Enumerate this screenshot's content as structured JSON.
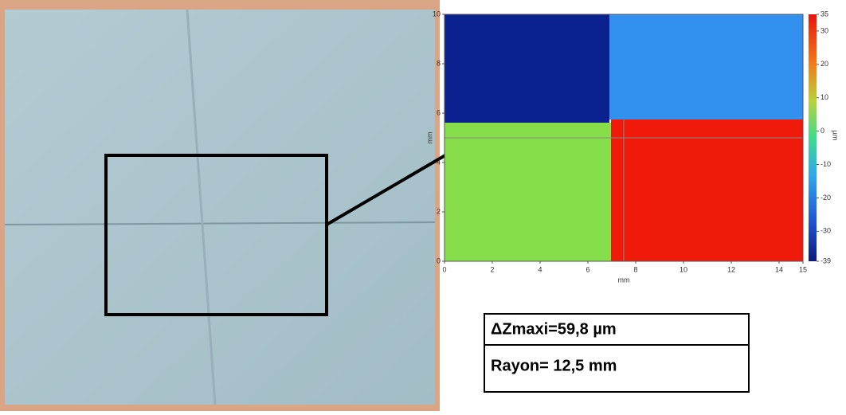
{
  "map": {
    "x_label": "mm",
    "y_label": "mm",
    "colorbar_label": "µm",
    "xlim": [
      0,
      15
    ],
    "xticks": [
      0,
      2,
      4,
      6,
      8,
      10,
      12,
      14,
      15
    ],
    "ylim": [
      0,
      10
    ],
    "yticks": [
      0,
      2,
      4,
      6,
      8,
      10
    ],
    "colorbar_lim": [
      -39,
      35
    ],
    "colorbar_ticks": [
      35,
      30,
      20,
      10,
      0,
      -10,
      -20,
      -30,
      -39
    ]
  },
  "results": {
    "rows": [
      "ΔZmaxi=59,8 µm",
      "Rayon= 12,5 mm"
    ]
  }
}
